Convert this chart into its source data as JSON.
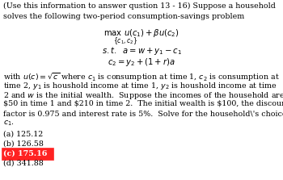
{
  "bg_color": "#ffffff",
  "text_color": "#000000",
  "highlight_color": "#ff2222",
  "intro_line1": "(Use this information to answer qustion 13 - 16) Suppose a household",
  "intro_line2": "solves the following two-period consumption-savings problem",
  "option_a": "(a) 125.12",
  "option_b": "(b) 126.58",
  "option_c": "(c) 175.16",
  "option_d": "(d) 341.88",
  "font_size_main": 6.8,
  "font_size_math": 7.2,
  "font_size_sub": 5.5
}
